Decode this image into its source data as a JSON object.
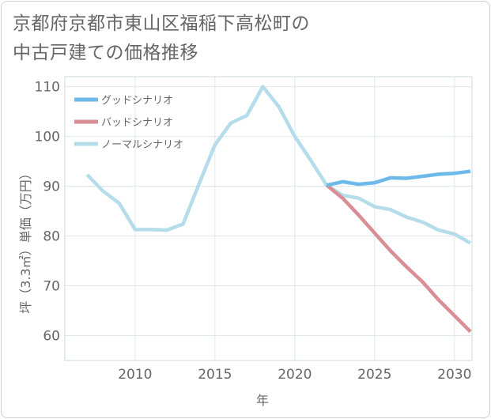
{
  "chart_data": {
    "type": "line",
    "title_lines": [
      "京都府京都市東山区福稲下高松町の",
      "中古戸建ての価格推移"
    ],
    "xlabel": "年",
    "ylabel": "坪（3.3㎡）単価（万円）",
    "xlim": [
      2005.6,
      2031.1
    ],
    "ylim": [
      55,
      112
    ],
    "x_ticks": [
      2010,
      2015,
      2020,
      2025,
      2030
    ],
    "y_ticks": [
      60,
      70,
      80,
      90,
      100,
      110
    ],
    "grid": true,
    "legend_position": "top-left",
    "series": [
      {
        "name": "グッドシナリオ",
        "color": "#6cb9ea",
        "points": [
          [
            2022,
            90.2
          ],
          [
            2023,
            90.9
          ],
          [
            2024,
            90.4
          ],
          [
            2025,
            90.7
          ],
          [
            2026,
            91.7
          ],
          [
            2027,
            91.6
          ],
          [
            2028,
            92.0
          ],
          [
            2029,
            92.4
          ],
          [
            2030,
            92.6
          ],
          [
            2031,
            93.0
          ]
        ]
      },
      {
        "name": "バッドシナリオ",
        "color": "#d98e96",
        "points": [
          [
            2022,
            90.2
          ],
          [
            2023,
            87.6
          ],
          [
            2024,
            84.2
          ],
          [
            2025,
            80.6
          ],
          [
            2026,
            77.0
          ],
          [
            2027,
            73.8
          ],
          [
            2028,
            70.8
          ],
          [
            2029,
            67.2
          ],
          [
            2030,
            64.0
          ],
          [
            2031,
            60.8
          ]
        ]
      },
      {
        "name": "ノーマルシナリオ",
        "color": "#b5dcea",
        "points": [
          [
            2007,
            92.3
          ],
          [
            2008,
            89.0
          ],
          [
            2009,
            86.6
          ],
          [
            2010,
            81.3
          ],
          [
            2011,
            81.3
          ],
          [
            2012,
            81.2
          ],
          [
            2013,
            82.4
          ],
          [
            2014,
            90.4
          ],
          [
            2015,
            98.3
          ],
          [
            2016,
            102.7
          ],
          [
            2017,
            104.2
          ],
          [
            2018,
            110.0
          ],
          [
            2019,
            106.0
          ],
          [
            2020,
            100.0
          ],
          [
            2021,
            95.2
          ],
          [
            2022,
            90.2
          ],
          [
            2023,
            88.2
          ],
          [
            2024,
            87.6
          ],
          [
            2025,
            85.9
          ],
          [
            2026,
            85.3
          ],
          [
            2027,
            83.8
          ],
          [
            2028,
            82.8
          ],
          [
            2029,
            81.2
          ],
          [
            2030,
            80.4
          ],
          [
            2031,
            78.6
          ]
        ]
      }
    ]
  }
}
